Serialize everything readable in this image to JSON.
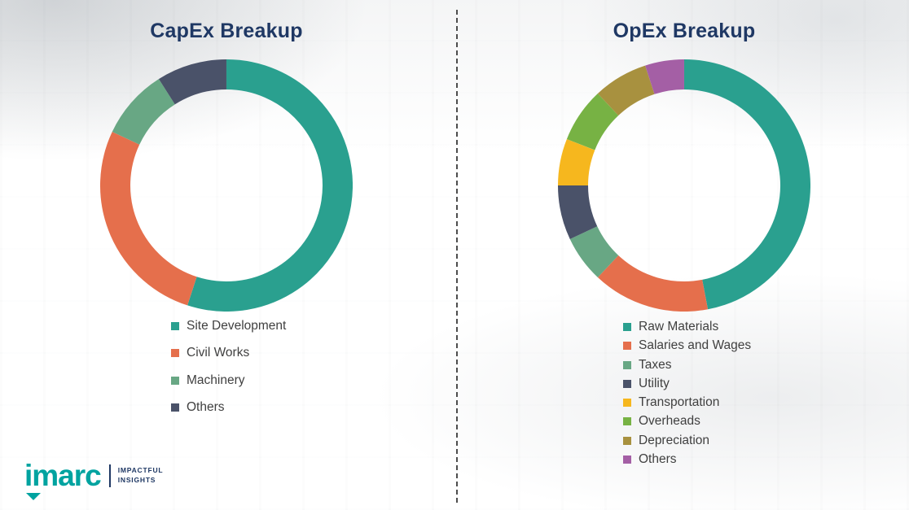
{
  "divider": {
    "style": "dashed",
    "color": "#4d4d4d"
  },
  "chart_data": [
    {
      "type": "pie",
      "subtype": "donut",
      "title": "CapEx Breakup",
      "title_color": "#1f3864",
      "legend_position": "bottom-left",
      "segments": [
        {
          "label": "Site Development",
          "value": 55,
          "color": "#2aa08f"
        },
        {
          "label": "Civil Works",
          "value": 27,
          "color": "#e56f4c"
        },
        {
          "label": "Machinery",
          "value": 9,
          "color": "#68a784"
        },
        {
          "label": "Others",
          "value": 9,
          "color": "#4a5269"
        }
      ]
    },
    {
      "type": "pie",
      "subtype": "donut",
      "title": "OpEx Breakup",
      "title_color": "#1f3864",
      "legend_position": "bottom-left",
      "segments": [
        {
          "label": "Raw Materials",
          "value": 47,
          "color": "#2aa08f"
        },
        {
          "label": "Salaries and Wages",
          "value": 15,
          "color": "#e56f4c"
        },
        {
          "label": "Taxes",
          "value": 6,
          "color": "#68a784"
        },
        {
          "label": "Utility",
          "value": 7,
          "color": "#4a5269"
        },
        {
          "label": "Transportation",
          "value": 6,
          "color": "#f6b71e"
        },
        {
          "label": "Overheads",
          "value": 7,
          "color": "#77b244"
        },
        {
          "label": "Depreciation",
          "value": 7,
          "color": "#a8913f"
        },
        {
          "label": "Others",
          "value": 5,
          "color": "#a45fa5"
        }
      ]
    }
  ],
  "logo": {
    "brand": "imarc",
    "brand_color": "#00a3a0",
    "tagline_line1": "IMPACTFUL",
    "tagline_line2": "INSIGHTS",
    "tagline_color": "#1f3864"
  }
}
